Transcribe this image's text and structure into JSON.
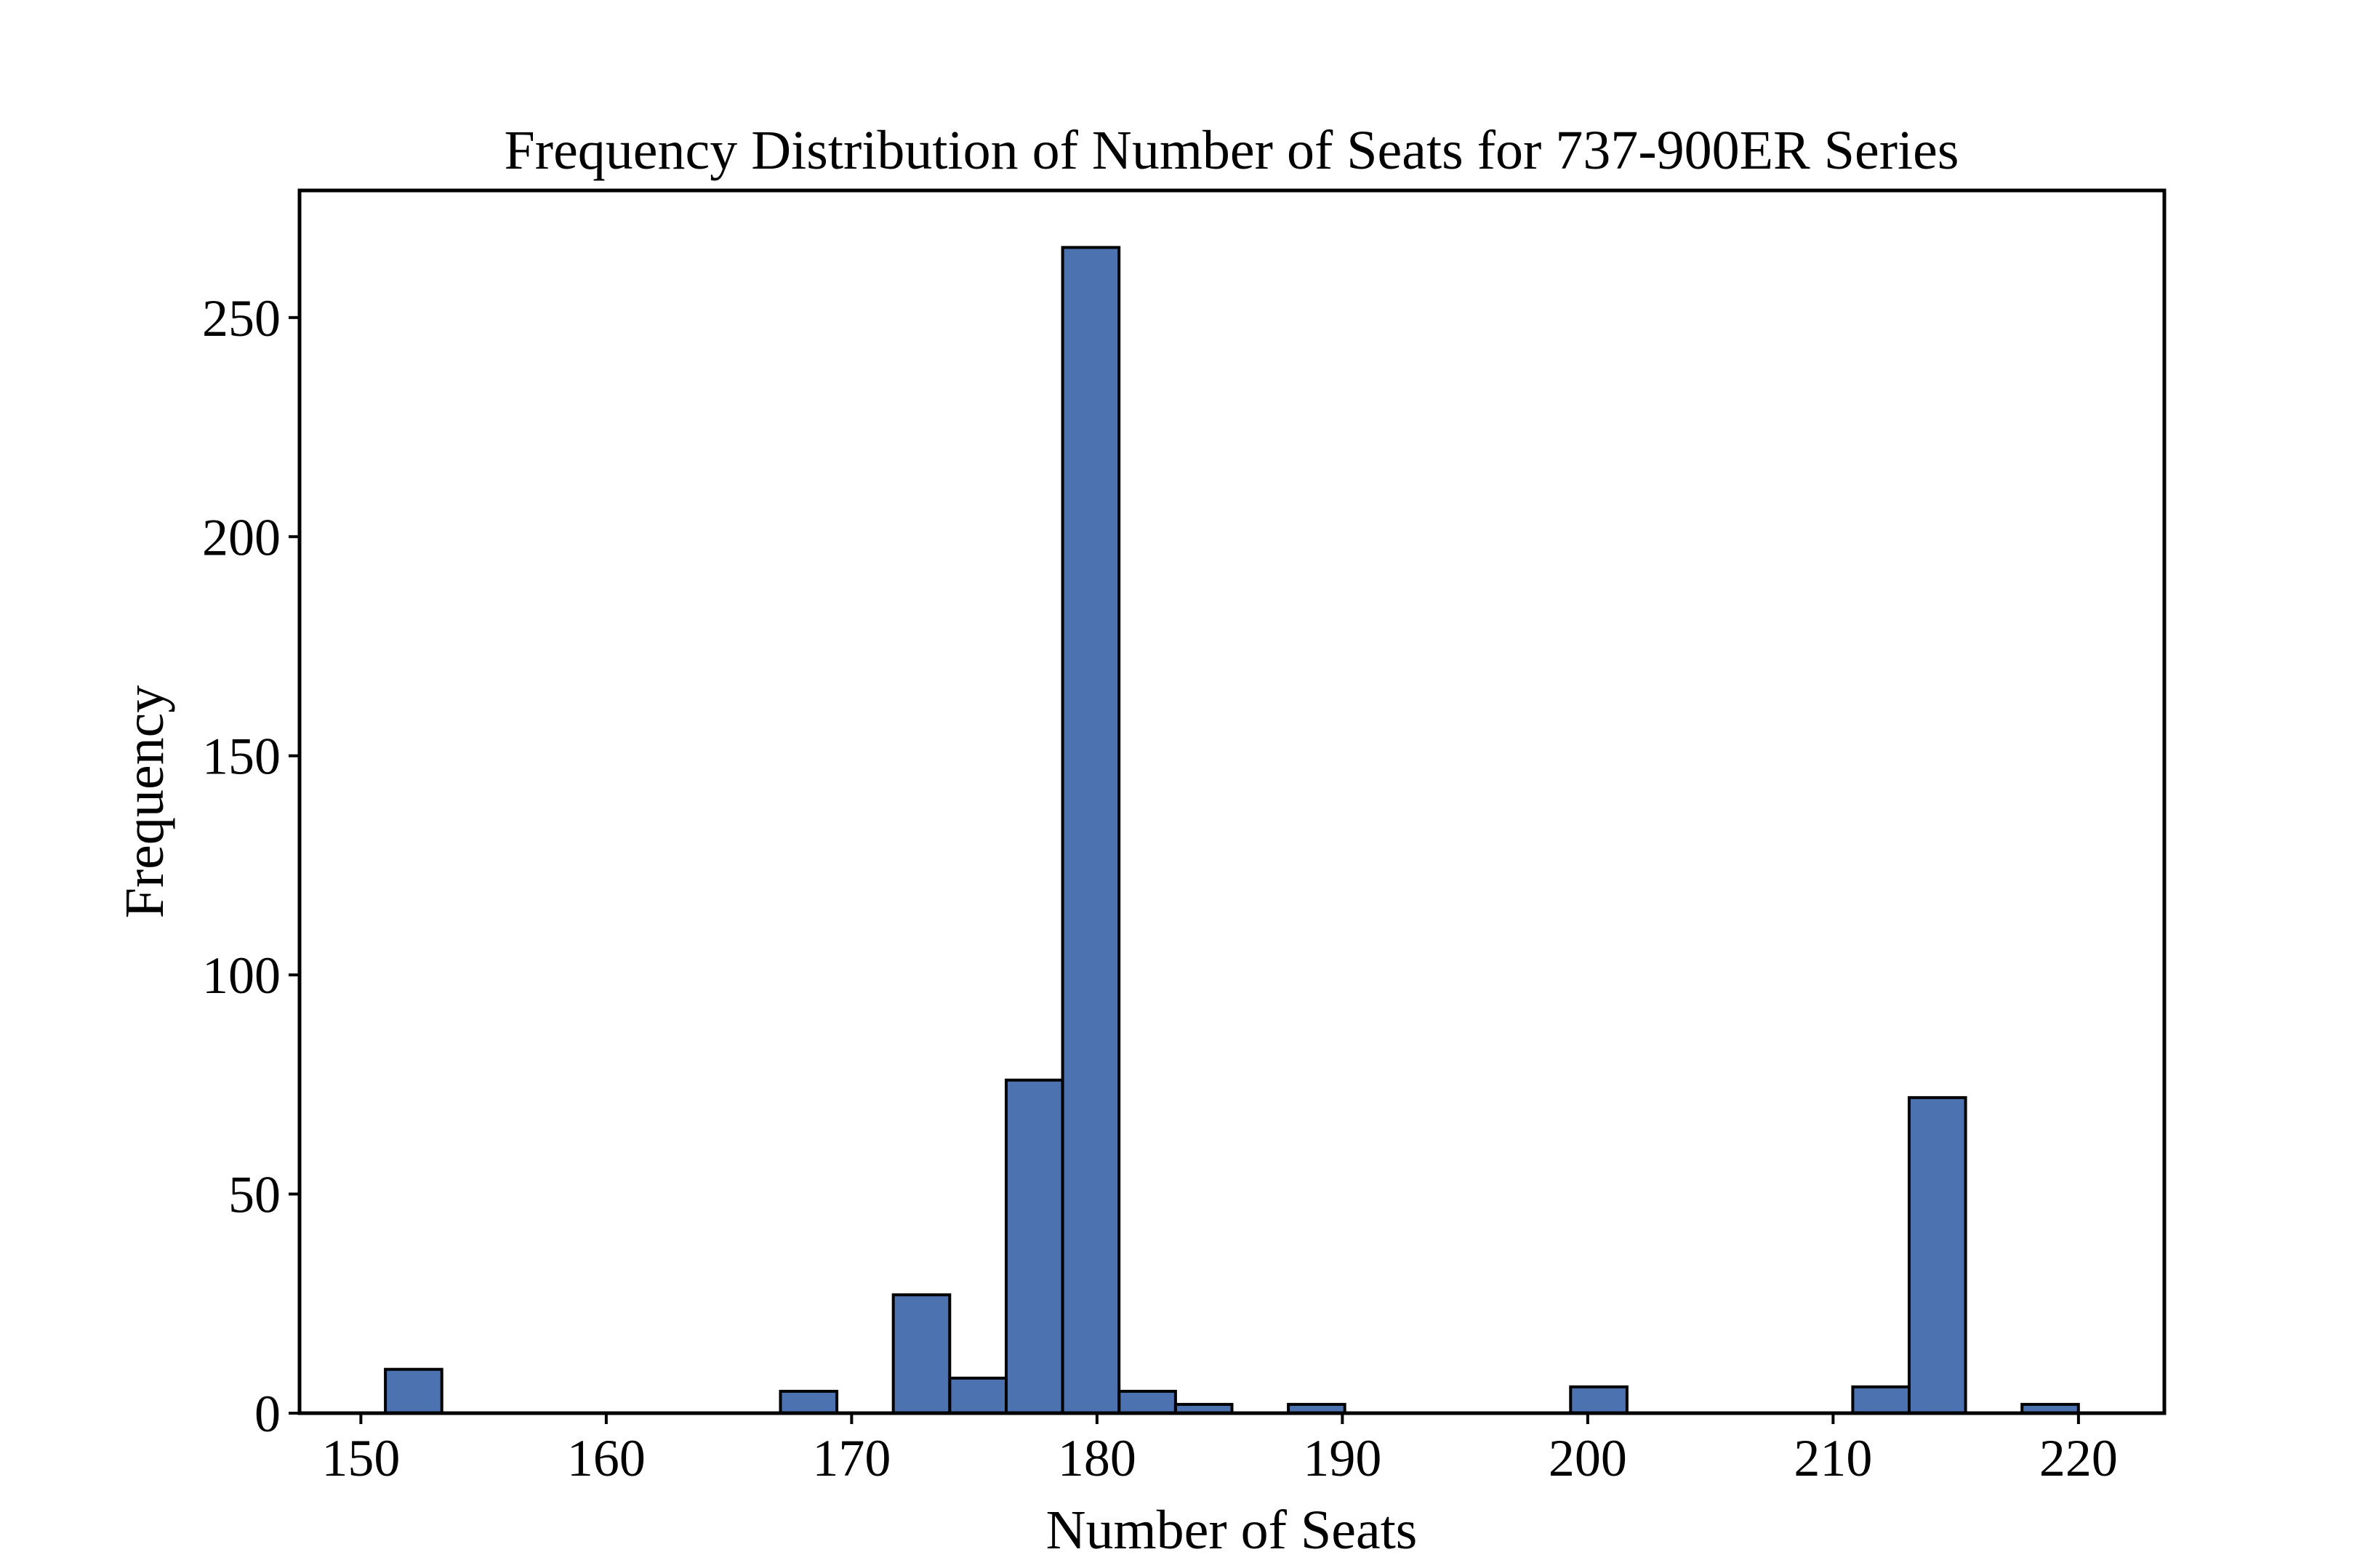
{
  "chart_data": {
    "type": "bar",
    "title": "Frequency Distribution of Number of Seats for 737-900ER Series",
    "xlabel": "Number of Seats",
    "ylabel": "Frequency",
    "xlim": [
      147.5,
      223.5
    ],
    "ylim": [
      0,
      279
    ],
    "xticks": [
      150,
      160,
      170,
      180,
      190,
      200,
      210,
      220
    ],
    "yticks": [
      0,
      50,
      100,
      150,
      200,
      250
    ],
    "bin_width": 2.3,
    "bars": [
      {
        "x0": 151.0,
        "x1": 153.3,
        "value": 10
      },
      {
        "x0": 167.1,
        "x1": 169.4,
        "value": 5
      },
      {
        "x0": 171.7,
        "x1": 174.0,
        "value": 27
      },
      {
        "x0": 174.0,
        "x1": 176.3,
        "value": 8
      },
      {
        "x0": 176.3,
        "x1": 178.6,
        "value": 76
      },
      {
        "x0": 178.6,
        "x1": 180.9,
        "value": 266
      },
      {
        "x0": 180.9,
        "x1": 183.2,
        "value": 5
      },
      {
        "x0": 183.2,
        "x1": 185.5,
        "value": 2
      },
      {
        "x0": 187.8,
        "x1": 190.1,
        "value": 2
      },
      {
        "x0": 199.3,
        "x1": 201.6,
        "value": 6
      },
      {
        "x0": 210.8,
        "x1": 213.1,
        "value": 6
      },
      {
        "x0": 213.1,
        "x1": 215.4,
        "value": 72
      },
      {
        "x0": 217.7,
        "x1": 220.0,
        "value": 2
      }
    ],
    "grid": false,
    "bar_color": "#4c72b0",
    "edge_color": "#000000"
  }
}
